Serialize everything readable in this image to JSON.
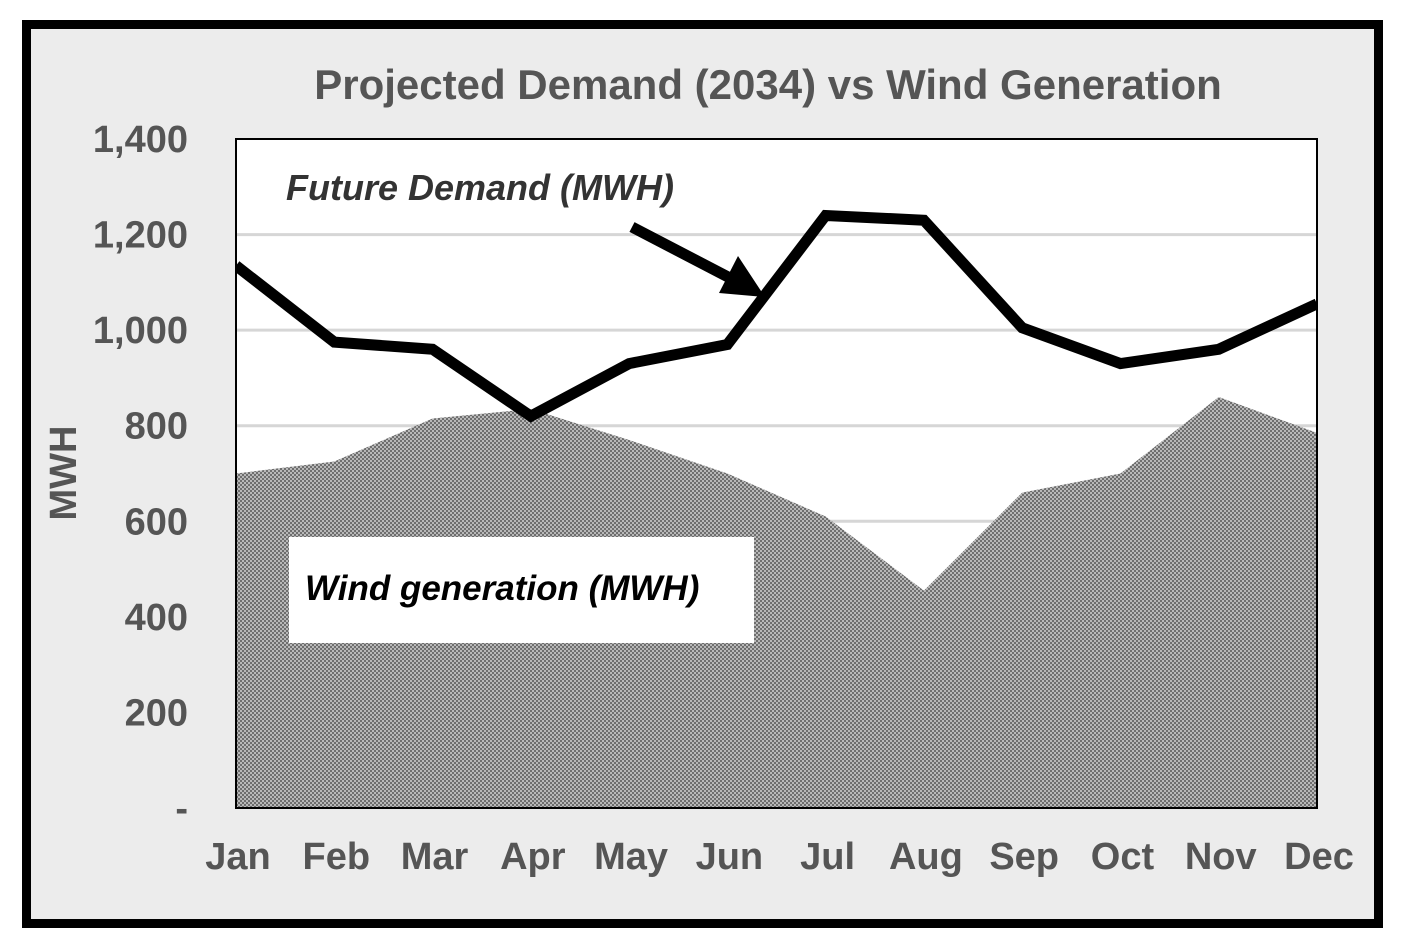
{
  "chart_data": {
    "type": "area",
    "title": "Projected Demand (2034) vs Wind Generation",
    "xlabel": "",
    "ylabel": "MWH",
    "categories": [
      "Jan",
      "Feb",
      "Mar",
      "Apr",
      "May",
      "Jun",
      "Jul",
      "Aug",
      "Sep",
      "Oct",
      "Nov",
      "Dec"
    ],
    "ylim": [
      0,
      1400
    ],
    "yticks": [
      {
        "value": 0,
        "label": "-"
      },
      {
        "value": 200,
        "label": "200"
      },
      {
        "value": 400,
        "label": "400"
      },
      {
        "value": 600,
        "label": "600"
      },
      {
        "value": 800,
        "label": "800"
      },
      {
        "value": 1000,
        "label": "1,000"
      },
      {
        "value": 1200,
        "label": "1,200"
      },
      {
        "value": 1400,
        "label": "1,400"
      }
    ],
    "grid": true,
    "series": [
      {
        "type": "area",
        "values": [
          700,
          725,
          815,
          835,
          770,
          700,
          610,
          455,
          660,
          700,
          860,
          785
        ]
      },
      {
        "type": "line",
        "values": [
          1135,
          975,
          960,
          820,
          930,
          970,
          1240,
          1230,
          1005,
          930,
          960,
          1055
        ]
      }
    ],
    "annotations": [
      {
        "text": "Future Demand (MWH)",
        "target_series": 1,
        "arrow": true
      },
      {
        "text": "Wind generation (MWH)",
        "target_series": 0,
        "arrow": false
      }
    ],
    "colors": {
      "frame": "#000000",
      "background": "#ececec",
      "plot_background": "#ffffff",
      "area_fill": "#9a9a9a",
      "demand_line": "#000000",
      "text": "#555555"
    }
  }
}
